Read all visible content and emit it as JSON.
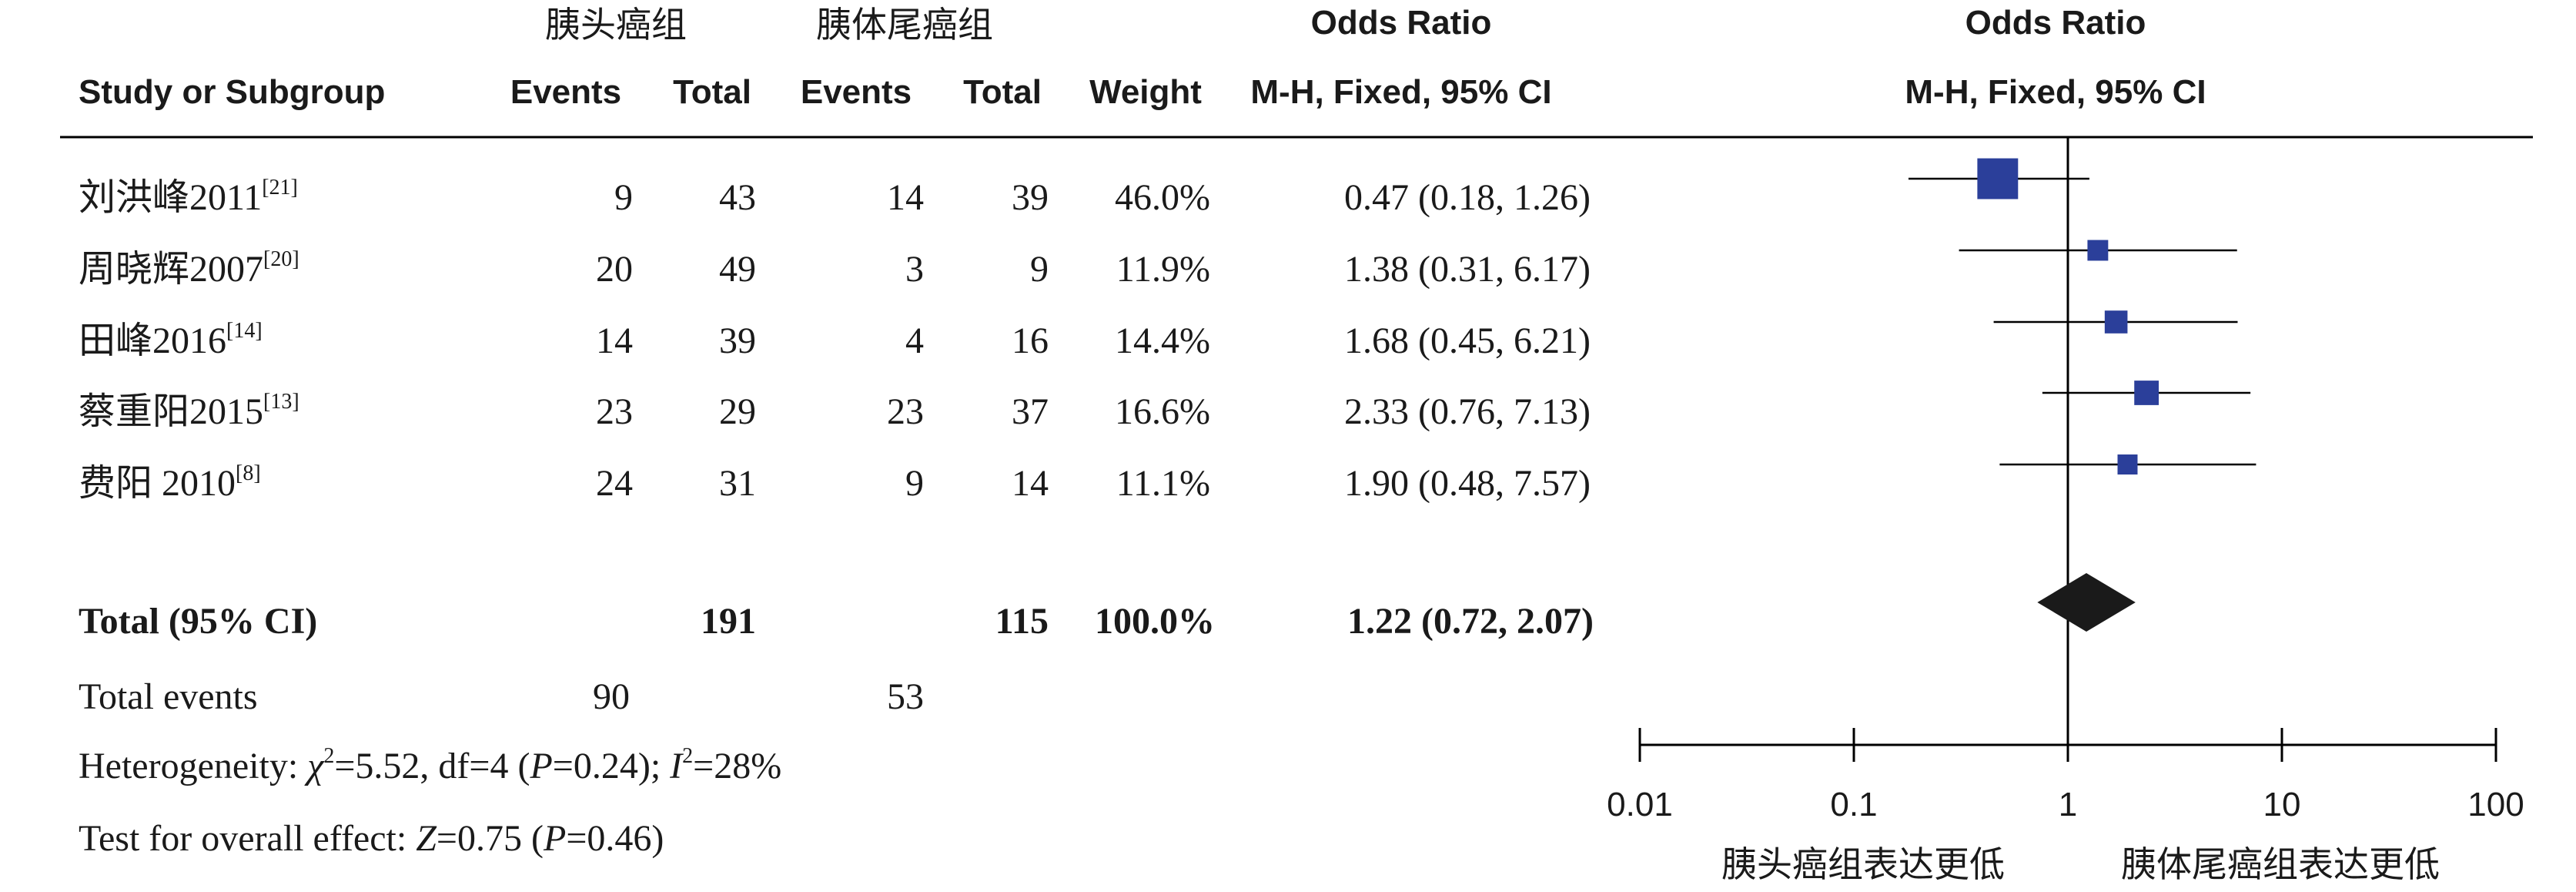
{
  "header": {
    "group1_label": "胰头癌组",
    "group2_label": "胰体尾癌组",
    "or_title_left": "Odds Ratio",
    "or_title_right": "Odds Ratio",
    "col_study": "Study or Subgroup",
    "col_events1": "Events",
    "col_total1": "Total",
    "col_events2": "Events",
    "col_total2": "Total",
    "col_weight": "Weight",
    "col_method_left": "M-H, Fixed, 95% CI",
    "col_method_right": "M-H, Fixed, 95% CI"
  },
  "studies": [
    {
      "name": "刘洪峰2011",
      "ref": "[21]",
      "events1": "9",
      "total1": "43",
      "events2": "14",
      "total2": "39",
      "weight": "46.0%",
      "ci_text": "0.47 (0.18, 1.26)"
    },
    {
      "name": "周晓辉2007",
      "ref": "[20]",
      "events1": "20",
      "total1": "49",
      "events2": "3",
      "total2": "9",
      "weight": "11.9%",
      "ci_text": "1.38 (0.31, 6.17)"
    },
    {
      "name": "田峰2016",
      "ref": "[14]",
      "events1": "14",
      "total1": "39",
      "events2": "4",
      "total2": "16",
      "weight": "14.4%",
      "ci_text": "1.68 (0.45, 6.21)"
    },
    {
      "name": "蔡重阳2015",
      "ref": "[13]",
      "events1": "23",
      "total1": "29",
      "events2": "23",
      "total2": "37",
      "weight": "16.6%",
      "ci_text": "2.33 (0.76, 7.13)"
    },
    {
      "name": "费阳 2010",
      "ref": "[8]",
      "events1": "24",
      "total1": "31",
      "events2": "9",
      "total2": "14",
      "weight": "11.1%",
      "ci_text": "1.90 (0.48, 7.57)"
    }
  ],
  "total": {
    "label": "Total (95% CI)",
    "total1": "191",
    "total2": "115",
    "weight": "100.0%",
    "ci_text": "1.22 (0.72, 2.07)"
  },
  "total_events": {
    "label": "Total events",
    "events1": "90",
    "events2": "53"
  },
  "heterogeneity": {
    "prefix": "Heterogeneity: ",
    "chi_symbol": "χ",
    "chi_sup": "2",
    "chi_rest": "=5.52, df=4 (",
    "p_symbol": "P",
    "p_rest": "=0.24); ",
    "i_symbol": "I",
    "i_sup": "2",
    "i_rest": "=28%"
  },
  "overall_effect": {
    "prefix": "Test for overall effect: ",
    "z_symbol": "Z",
    "z_rest": "=0.75 (",
    "p_symbol": "P",
    "p_rest": "=0.46)"
  },
  "axis": {
    "favours_left": "胰头癌组表达更低",
    "favours_right": "胰体尾癌组表达更低"
  },
  "colors": {
    "study_marker": "#2b3f9a",
    "diamond": "#1a1a1a",
    "lines": "#000000",
    "text": "#1a1a1a"
  },
  "chart_data": {
    "type": "forest",
    "scale": "log",
    "xlim": [
      0.01,
      100
    ],
    "ticks": [
      0.01,
      0.1,
      1,
      10,
      100
    ],
    "tick_labels": [
      "0.01",
      "0.1",
      "1",
      "10",
      "100"
    ],
    "null_line": 1,
    "studies": [
      {
        "name": "刘洪峰2011",
        "or": 0.47,
        "lower": 0.18,
        "upper": 1.26,
        "weight": 46.0
      },
      {
        "name": "周晓辉2007",
        "or": 1.38,
        "lower": 0.31,
        "upper": 6.17,
        "weight": 11.9
      },
      {
        "name": "田峰2016",
        "or": 1.68,
        "lower": 0.45,
        "upper": 6.21,
        "weight": 14.4
      },
      {
        "name": "蔡重阳2015",
        "or": 2.33,
        "lower": 0.76,
        "upper": 7.13,
        "weight": 16.6
      },
      {
        "name": "费阳 2010",
        "or": 1.9,
        "lower": 0.48,
        "upper": 7.57,
        "weight": 11.1
      }
    ],
    "pooled": {
      "or": 1.22,
      "lower": 0.72,
      "upper": 2.07
    }
  }
}
